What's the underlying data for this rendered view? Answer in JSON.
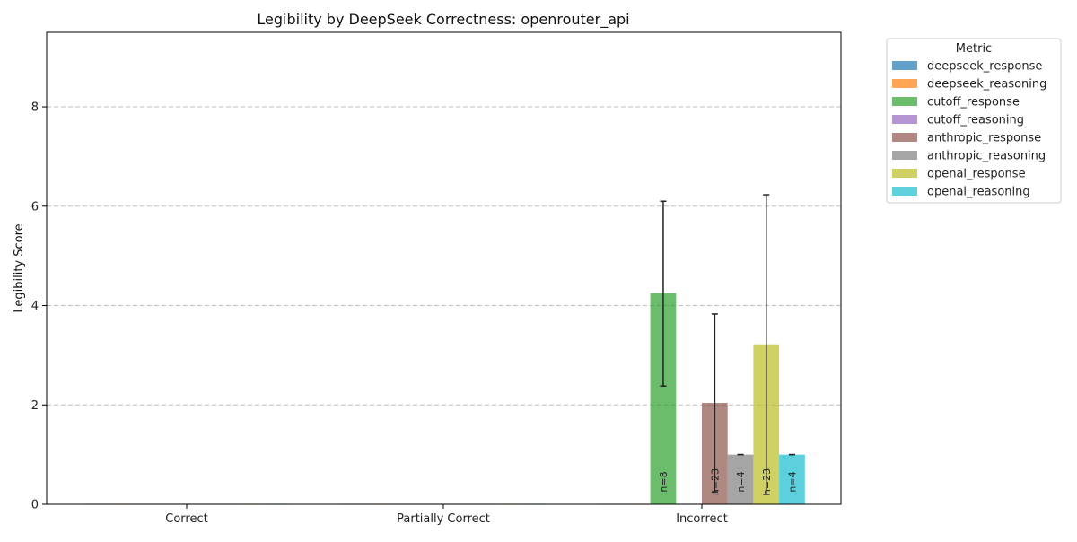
{
  "chart_data": {
    "type": "bar",
    "title": "Legibility by DeepSeek Correctness: openrouter_api",
    "xlabel": "",
    "ylabel": "Legibility Score",
    "ylim": [
      0,
      9.5
    ],
    "yticks": [
      "0",
      "2",
      "4",
      "6",
      "8"
    ],
    "ytick_values": [
      0,
      2,
      4,
      6,
      8
    ],
    "grid": true,
    "categories": [
      "Correct",
      "Partially Correct",
      "Incorrect"
    ],
    "legend": {
      "title": "Metric",
      "placement": "outside-upper-right"
    },
    "series": [
      {
        "name": "deepseek_response",
        "color": "#1f77b4",
        "values": [
          0,
          0,
          0
        ],
        "err": [
          null,
          null,
          null
        ],
        "n": [
          "",
          "",
          ""
        ]
      },
      {
        "name": "deepseek_reasoning",
        "color": "#ff7f0e",
        "values": [
          0,
          0,
          0
        ],
        "err": [
          null,
          null,
          null
        ],
        "n": [
          "",
          "",
          ""
        ]
      },
      {
        "name": "cutoff_response",
        "color": "#2ca02c",
        "values": [
          0,
          0,
          4.25
        ],
        "err": [
          null,
          null,
          [
            2.38,
            6.1
          ]
        ],
        "n": [
          "",
          "",
          "n=8"
        ]
      },
      {
        "name": "cutoff_reasoning",
        "color": "#9467bd",
        "values": [
          0,
          0,
          0
        ],
        "err": [
          null,
          null,
          null
        ],
        "n": [
          "",
          "",
          ""
        ]
      },
      {
        "name": "anthropic_response",
        "color": "#8c564b",
        "values": [
          0,
          0,
          2.04
        ],
        "err": [
          null,
          null,
          [
            0.25,
            3.83
          ]
        ],
        "n": [
          "",
          "",
          "n=23"
        ]
      },
      {
        "name": "anthropic_reasoning",
        "color": "#7f7f7f",
        "values": [
          0,
          0,
          1.0
        ],
        "err": [
          null,
          null,
          [
            1.0,
            1.0
          ]
        ],
        "n": [
          "",
          "",
          "n=4"
        ]
      },
      {
        "name": "openai_response",
        "color": "#bcbd22",
        "values": [
          0,
          0,
          3.22
        ],
        "err": [
          null,
          null,
          [
            0.2,
            6.23
          ]
        ],
        "n": [
          "",
          "",
          "n=23"
        ]
      },
      {
        "name": "openai_reasoning",
        "color": "#17becf",
        "values": [
          0,
          0,
          1.0
        ],
        "err": [
          null,
          null,
          [
            1.0,
            1.0
          ]
        ],
        "n": [
          "",
          "",
          "n=4"
        ]
      }
    ]
  }
}
